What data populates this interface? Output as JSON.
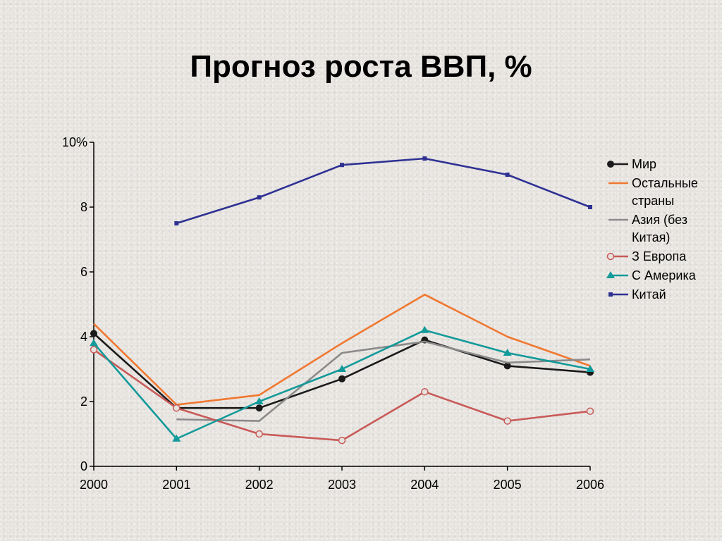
{
  "title": "Прогноз роста ВВП, %",
  "chart_data": {
    "type": "line",
    "title": "Прогноз роста ВВП, %",
    "x": [
      "2000",
      "2001",
      "2002",
      "2003",
      "2004",
      "2005",
      "2006"
    ],
    "y_ticks": [
      "0",
      "2",
      "4",
      "6",
      "8",
      "10%"
    ],
    "ylim": [
      0,
      10
    ],
    "grid": false,
    "legend_position": "right",
    "series": [
      {
        "name": "Мир",
        "name_lines": [
          "Мир"
        ],
        "color": "#1a1a1a",
        "marker": "filled-circle",
        "values": [
          4.1,
          1.8,
          1.8,
          2.7,
          3.9,
          3.1,
          2.9
        ]
      },
      {
        "name": "Остальные страны",
        "name_lines": [
          "Остальные",
          "страны"
        ],
        "color": "#f07830",
        "marker": "none",
        "values": [
          4.4,
          1.9,
          2.2,
          3.8,
          5.3,
          4.0,
          3.1
        ]
      },
      {
        "name": "Азия (без Китая)",
        "name_lines": [
          "Азия (без",
          "Китая)"
        ],
        "color": "#8a8a8a",
        "marker": "none",
        "values": [
          null,
          1.45,
          1.4,
          3.5,
          3.85,
          3.2,
          3.3
        ]
      },
      {
        "name": "З Европа",
        "name_lines": [
          "З Европа"
        ],
        "color": "#c85a58",
        "marker": "open-circle",
        "values": [
          3.6,
          1.8,
          1.0,
          0.8,
          2.3,
          1.4,
          1.7
        ]
      },
      {
        "name": "С Америка",
        "name_lines": [
          "С Америка"
        ],
        "color": "#139a9a",
        "marker": "triangle",
        "values": [
          3.8,
          0.85,
          2.0,
          3.0,
          4.2,
          3.5,
          3.0
        ]
      },
      {
        "name": "Китай",
        "name_lines": [
          "Китай"
        ],
        "color": "#2e3192",
        "marker": "square",
        "values": [
          null,
          7.5,
          8.3,
          9.3,
          9.5,
          9.0,
          8.0
        ]
      }
    ]
  }
}
